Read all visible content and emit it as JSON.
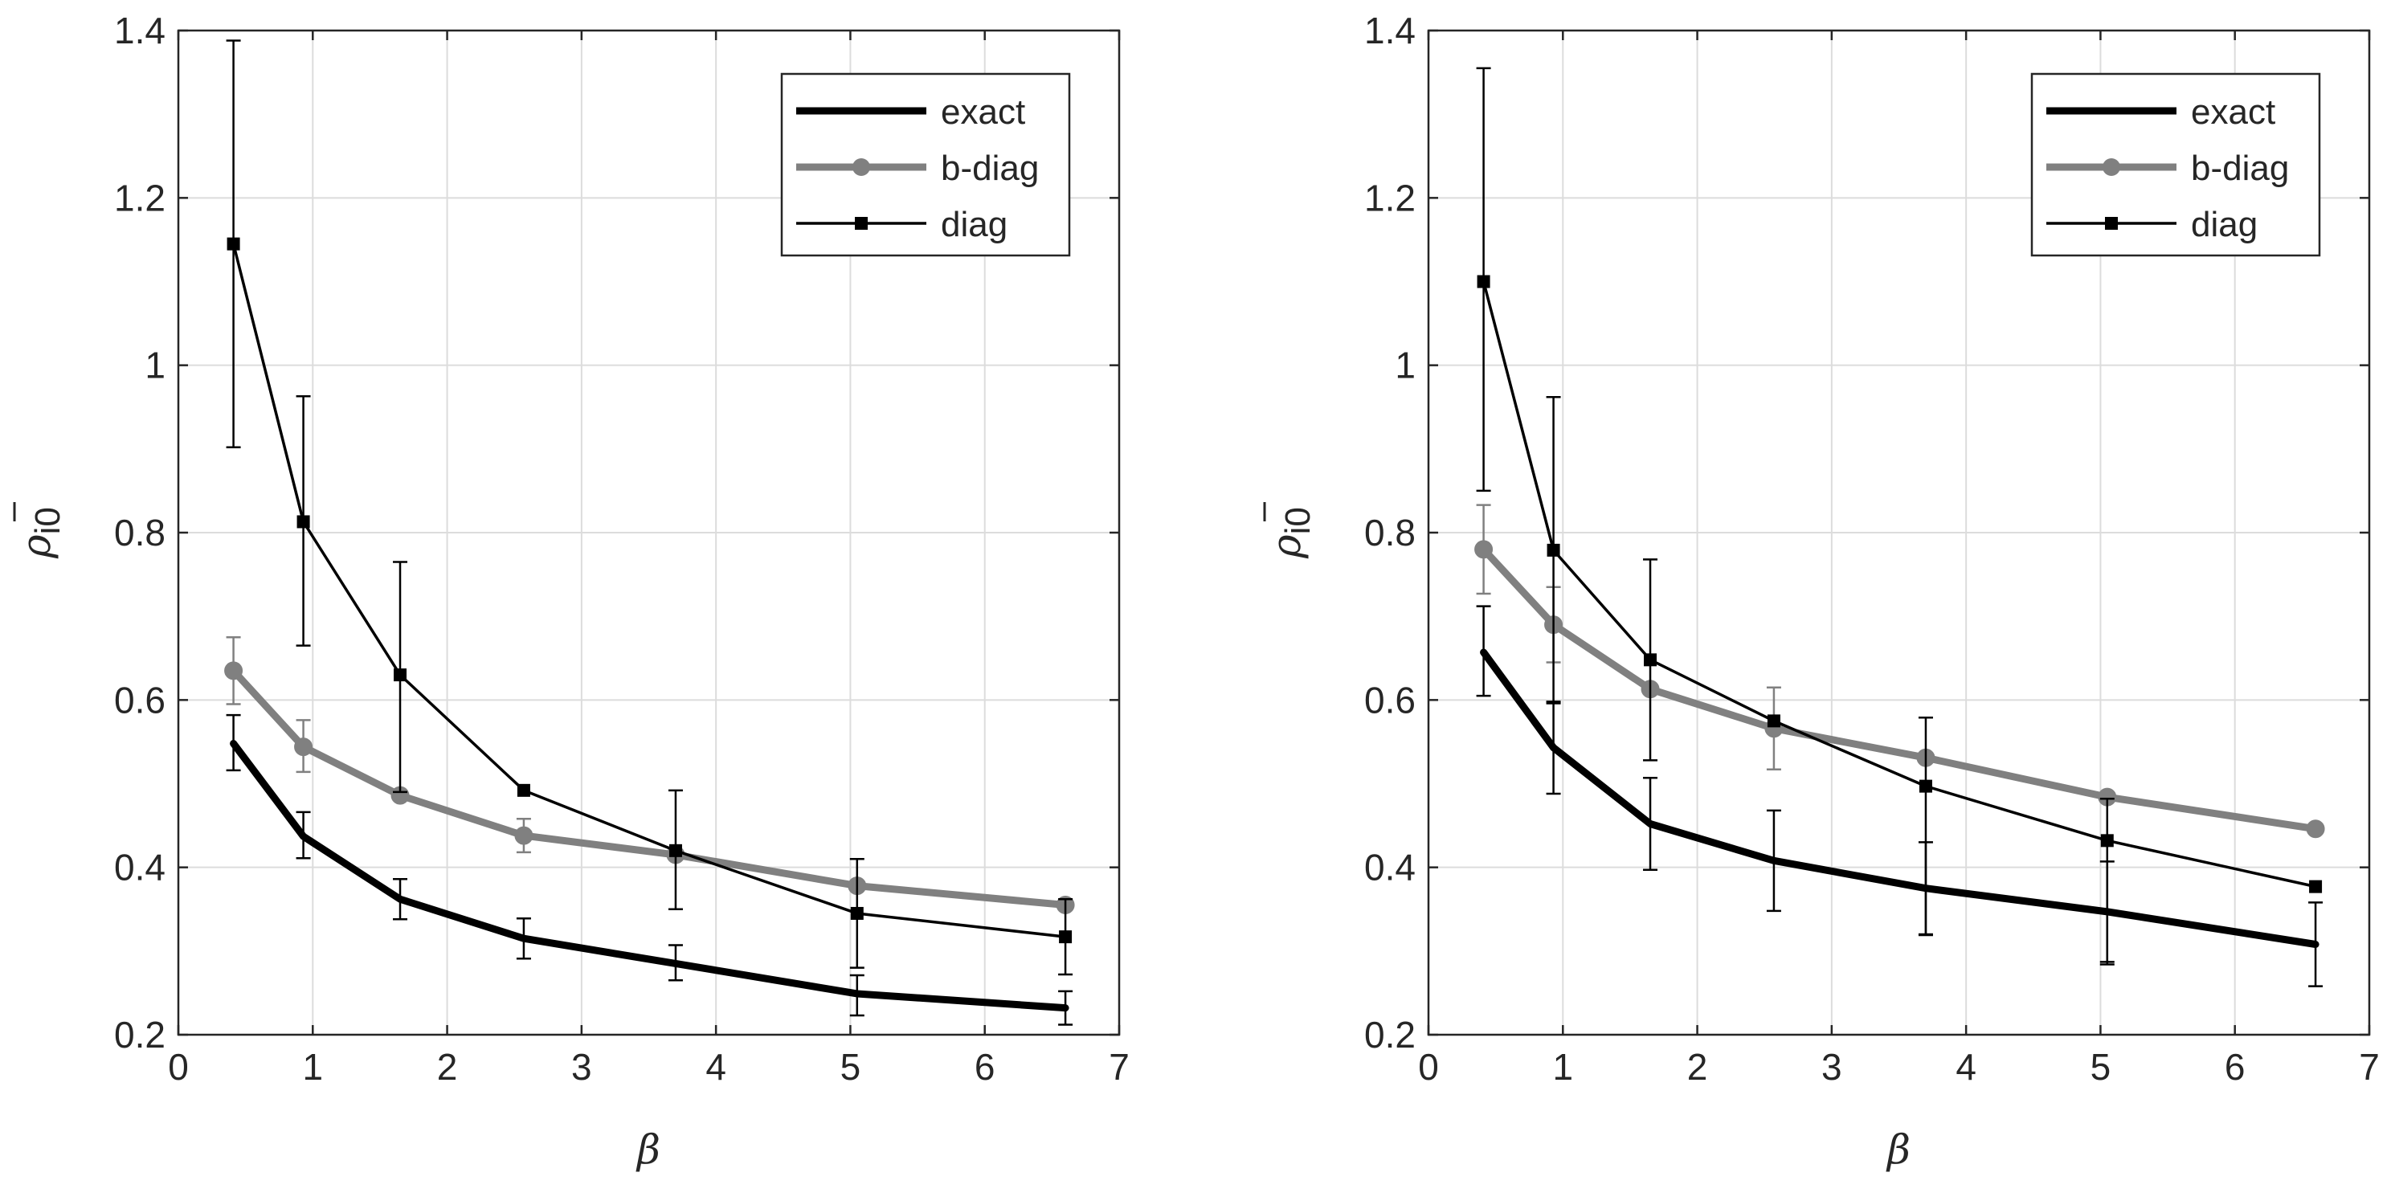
{
  "chart_data": [
    {
      "type": "line",
      "title": "",
      "xlabel": "β",
      "ylabel": "ρ̄i0",
      "ylabel_symbol": "ρ",
      "ylabel_sub": "i0",
      "xlim": [
        0,
        7
      ],
      "ylim": [
        0.2,
        1.4
      ],
      "xticks": [
        0,
        1,
        2,
        3,
        4,
        5,
        6,
        7
      ],
      "yticks": [
        0.2,
        0.4,
        0.6,
        0.8,
        1,
        1.2,
        1.4
      ],
      "ytick_labels": [
        "0.2",
        "0.4",
        "0.6",
        "0.8",
        "1",
        "1.2",
        "1.4"
      ],
      "grid": true,
      "legend_position": "top-right",
      "x": [
        0.41,
        0.93,
        1.65,
        2.57,
        3.7,
        5.05,
        6.6
      ],
      "series": [
        {
          "name": "exact",
          "color": "#000000",
          "marker": "none",
          "values": [
            0.548,
            0.437,
            0.362,
            0.315,
            0.285,
            0.249,
            0.232
          ],
          "err_low": [
            0.032,
            0.026,
            0.024,
            0.024,
            0.02,
            0.026,
            0.02
          ],
          "err_high": [
            0.034,
            0.029,
            0.024,
            0.024,
            0.022,
            0.022,
            0.02
          ]
        },
        {
          "name": "b-diag",
          "color": "#808080",
          "marker": "circle",
          "values": [
            0.635,
            0.544,
            0.486,
            0.438,
            0.415,
            0.378,
            0.355
          ],
          "err_low": [
            0.04,
            0.03,
            0.0,
            0.02,
            0.0,
            0.0,
            0.0
          ],
          "err_high": [
            0.04,
            0.032,
            0.0,
            0.02,
            0.0,
            0.0,
            0.0
          ]
        },
        {
          "name": "diag",
          "color": "#000000",
          "marker": "square",
          "values": [
            1.145,
            0.813,
            0.63,
            0.492,
            0.42,
            0.345,
            0.317
          ],
          "err_low": [
            0.243,
            0.148,
            0.14,
            0.0,
            0.07,
            0.065,
            0.045
          ],
          "err_high": [
            0.243,
            0.15,
            0.135,
            0.0,
            0.072,
            0.065,
            0.045
          ]
        }
      ]
    },
    {
      "type": "line",
      "title": "",
      "xlabel": "β",
      "ylabel": "ρ̄i0",
      "ylabel_symbol": "ρ",
      "ylabel_sub": "i0",
      "xlim": [
        0,
        7
      ],
      "ylim": [
        0.2,
        1.4
      ],
      "xticks": [
        0,
        1,
        2,
        3,
        4,
        5,
        6,
        7
      ],
      "yticks": [
        0.2,
        0.4,
        0.6,
        0.8,
        1,
        1.2,
        1.4
      ],
      "ytick_labels": [
        "0.2",
        "0.4",
        "0.6",
        "0.8",
        "1",
        "1.2",
        "1.4"
      ],
      "grid": true,
      "legend_position": "top-right",
      "x": [
        0.41,
        0.93,
        1.65,
        2.57,
        3.7,
        5.05,
        6.6
      ],
      "series": [
        {
          "name": "exact",
          "color": "#000000",
          "marker": "none",
          "values": [
            0.657,
            0.543,
            0.452,
            0.408,
            0.375,
            0.347,
            0.308
          ],
          "err_low": [
            0.052,
            0.055,
            0.055,
            0.06,
            0.055,
            0.06,
            0.05
          ],
          "err_high": [
            0.055,
            0.055,
            0.055,
            0.06,
            0.055,
            0.06,
            0.05
          ]
        },
        {
          "name": "b-diag",
          "color": "#808080",
          "marker": "circle",
          "values": [
            0.78,
            0.69,
            0.613,
            0.566,
            0.531,
            0.484,
            0.446
          ],
          "err_low": [
            0.053,
            0.045,
            0.0,
            0.049,
            0.0,
            0.0,
            0.0
          ],
          "err_high": [
            0.053,
            0.045,
            0.0,
            0.049,
            0.0,
            0.0,
            0.0
          ]
        },
        {
          "name": "diag",
          "color": "#000000",
          "marker": "square",
          "values": [
            1.1,
            0.779,
            0.648,
            0.575,
            0.497,
            0.432,
            0.377
          ],
          "err_low": [
            0.25,
            0.183,
            0.12,
            0.0,
            0.178,
            0.148,
            0.0
          ],
          "err_high": [
            0.255,
            0.183,
            0.12,
            0.0,
            0.082,
            0.05,
            0.0
          ]
        }
      ]
    }
  ]
}
